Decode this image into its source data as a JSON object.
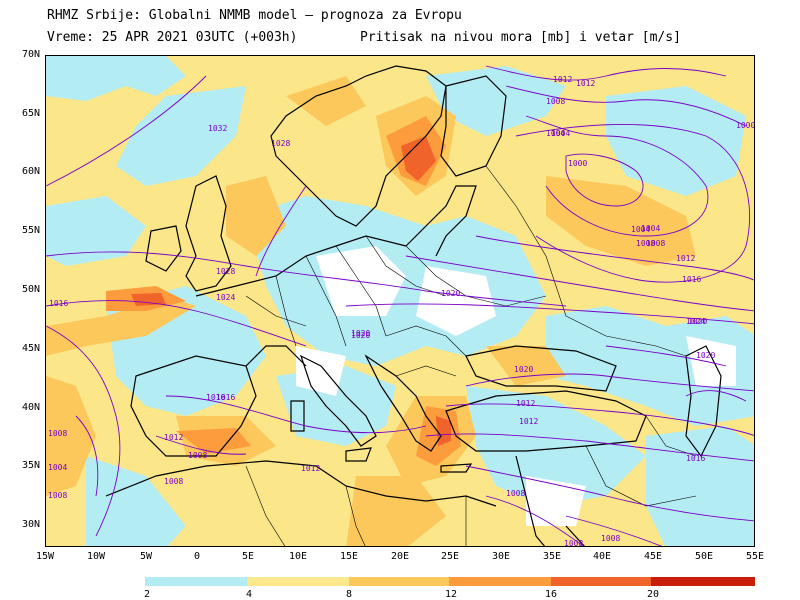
{
  "header": {
    "line1": "RHMZ Srbije: Globalni NMMB model — prognoza za Evropu",
    "line2_left": "Vreme: 25 APR 2021 03UTC (+003h)",
    "line2_right": "Pritisak na nivou mora [mb] i vetar [m/s]"
  },
  "axes": {
    "lat_labels": [
      "70N",
      "65N",
      "60N",
      "55N",
      "50N",
      "45N",
      "40N",
      "35N",
      "30N"
    ],
    "lon_labels": [
      "15W",
      "10W",
      "5W",
      "0",
      "5E",
      "10E",
      "15E",
      "20E",
      "25E",
      "30E",
      "35E",
      "40E",
      "45E",
      "50E",
      "55E"
    ]
  },
  "colorbar": {
    "ticks": [
      "2",
      "4",
      "8",
      "12",
      "16",
      "20"
    ],
    "colors": [
      "#b4ecf4",
      "#fce88c",
      "#fcc85c",
      "#fc9c3c",
      "#f0642c",
      "#c81e0a"
    ]
  },
  "isobar_labels": [
    "1032",
    "1028",
    "1028",
    "1024",
    "1016",
    "1020",
    "1020",
    "1024",
    "1020",
    "1016",
    "1012",
    "1008",
    "1012",
    "1008",
    "1008",
    "1008",
    "1012",
    "1008",
    "1004",
    "1000",
    "1004",
    "1008",
    "1012",
    "1016",
    "1020",
    "1020",
    "1016",
    "1012",
    "1008",
    "1004",
    "1008",
    "1000",
    "1004",
    "1008",
    "1012",
    "1016",
    "1020",
    "1012",
    "1004",
    "1008"
  ]
}
